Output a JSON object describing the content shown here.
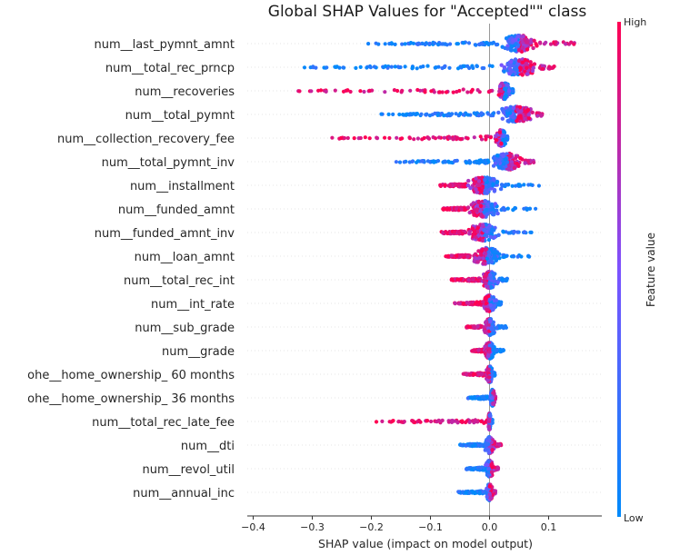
{
  "chart_data": {
    "type": "scatter",
    "title": "Global SHAP Values for \"Accepted\"\" class",
    "xlabel": "SHAP value (impact on model output)",
    "ylabel": "",
    "xlim": [
      -0.41,
      0.19
    ],
    "xticks": [
      -0.4,
      -0.3,
      -0.2,
      -0.1,
      0.0,
      0.1
    ],
    "xtick_labels": [
      "−0.4",
      "−0.3",
      "−0.2",
      "−0.1",
      "0.0",
      "0.1"
    ],
    "grid": false,
    "colorbar": {
      "title": "Feature value",
      "high_label": "High",
      "low_label": "Low",
      "low_color": "#008afb",
      "high_color": "#ff0052"
    },
    "features": [
      {
        "name": "num__last_pymnt_amnt",
        "min": -0.21,
        "max": 0.165,
        "center": 0.05,
        "spread": 0.035,
        "low_side": "left"
      },
      {
        "name": "num__total_rec_prncp",
        "min": -0.315,
        "max": 0.11,
        "center": 0.05,
        "spread": 0.035,
        "low_side": "left"
      },
      {
        "name": "num__recoveries",
        "min": -0.38,
        "max": 0.04,
        "center": 0.025,
        "spread": 0.012,
        "low_side": "right"
      },
      {
        "name": "num__total_pymnt",
        "min": -0.185,
        "max": 0.09,
        "center": 0.045,
        "spread": 0.035,
        "low_side": "left"
      },
      {
        "name": "num__collection_recovery_fee",
        "min": -0.27,
        "max": 0.03,
        "center": 0.02,
        "spread": 0.01,
        "low_side": "right"
      },
      {
        "name": "num__total_pymnt_inv",
        "min": -0.165,
        "max": 0.075,
        "center": 0.03,
        "spread": 0.03,
        "low_side": "left"
      },
      {
        "name": "num__installment",
        "min": -0.085,
        "max": 0.085,
        "center": -0.01,
        "spread": 0.03,
        "low_side": "right"
      },
      {
        "name": "num__funded_amnt",
        "min": -0.08,
        "max": 0.08,
        "center": -0.01,
        "spread": 0.03,
        "low_side": "right"
      },
      {
        "name": "num__funded_amnt_inv",
        "min": -0.085,
        "max": 0.08,
        "center": -0.01,
        "spread": 0.03,
        "low_side": "right"
      },
      {
        "name": "num__loan_amnt",
        "min": -0.075,
        "max": 0.07,
        "center": -0.005,
        "spread": 0.028,
        "low_side": "right"
      },
      {
        "name": "num__total_rec_int",
        "min": -0.065,
        "max": 0.03,
        "center": 0.0,
        "spread": 0.015,
        "low_side": "right"
      },
      {
        "name": "num__int_rate",
        "min": -0.06,
        "max": 0.02,
        "center": 0.0,
        "spread": 0.012,
        "low_side": "right"
      },
      {
        "name": "num__sub_grade",
        "min": -0.04,
        "max": 0.03,
        "center": 0.0,
        "spread": 0.012,
        "low_side": "right"
      },
      {
        "name": "num__grade",
        "min": -0.03,
        "max": 0.025,
        "center": 0.0,
        "spread": 0.01,
        "low_side": "right"
      },
      {
        "name": "ohe__home_ownership_ 60 months",
        "min": -0.045,
        "max": 0.01,
        "center": 0.0,
        "spread": 0.006,
        "low_side": "right"
      },
      {
        "name": "ohe__home_ownership_ 36 months",
        "min": -0.04,
        "max": 0.01,
        "center": 0.005,
        "spread": 0.004,
        "low_side": "left"
      },
      {
        "name": "num__total_rec_late_fee",
        "min": -0.2,
        "max": 0.005,
        "center": 0.0,
        "spread": 0.002,
        "low_side": "right"
      },
      {
        "name": "num__dti",
        "min": -0.05,
        "max": 0.02,
        "center": 0.0,
        "spread": 0.01,
        "low_side": "left"
      },
      {
        "name": "num__revol_util",
        "min": -0.04,
        "max": 0.015,
        "center": 0.0,
        "spread": 0.008,
        "low_side": "left"
      },
      {
        "name": "num__annual_inc",
        "min": -0.055,
        "max": 0.01,
        "center": 0.0,
        "spread": 0.006,
        "low_side": "left"
      }
    ]
  }
}
